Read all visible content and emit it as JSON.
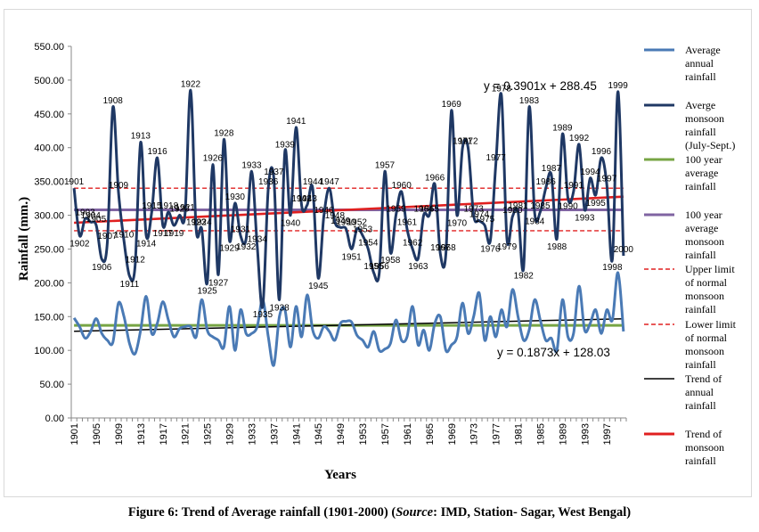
{
  "caption": {
    "main": "Figure 6: Trend of Average rainfall (1901-2000)  (",
    "source_label": "Source",
    "source_rest": ": IMD, Station- Sagar, West Bengal)"
  },
  "chart_data": {
    "type": "line",
    "xlabel": "Years",
    "ylabel": "Rainfall (mm.)",
    "ylim": [
      0,
      550
    ],
    "yticks": [
      "0.00",
      "50.00",
      "100.00",
      "150.00",
      "200.00",
      "250.00",
      "300.00",
      "350.00",
      "400.00",
      "450.00",
      "500.00",
      "550.00"
    ],
    "xticks": [
      "1901",
      "1905",
      "1909",
      "1913",
      "1917",
      "1921",
      "1925",
      "1929",
      "1933",
      "1937",
      "1941",
      "1945",
      "1949",
      "1953",
      "1957",
      "1961",
      "1965",
      "1969",
      "1973",
      "1977",
      "1981",
      "1985",
      "1989",
      "1993",
      "1997"
    ],
    "x_start": 1901,
    "x_end": 2000,
    "grid": false,
    "legend_position": "right",
    "series": [
      {
        "name": "Average annual rainfall",
        "color": "#4a7ab5",
        "values": [
          148,
          135,
          118,
          128,
          147,
          125,
          115,
          112,
          170,
          150,
          110,
          95,
          130,
          180,
          125,
          140,
          172,
          145,
          120,
          132,
          135,
          135,
          120,
          175,
          130,
          120,
          115,
          105,
          165,
          100,
          160,
          125,
          125,
          135,
          175,
          120,
          78,
          150,
          160,
          105,
          165,
          120,
          182,
          130,
          118,
          135,
          128,
          115,
          140,
          143,
          142,
          122,
          115,
          105,
          128,
          100,
          102,
          110,
          145,
          115,
          120,
          165,
          108,
          130,
          100,
          140,
          150,
          100,
          108,
          120,
          170,
          125,
          150,
          185,
          115,
          150,
          120,
          160,
          135,
          190,
          150,
          115,
          130,
          175,
          145,
          115,
          118,
          100,
          175,
          120,
          125,
          195,
          130,
          140,
          160,
          125,
          160,
          145,
          215,
          128
        ]
      },
      {
        "name": "Averge monsoon rainfall (July-Sept.)",
        "color": "#1f3864",
        "values": [
          340,
          270,
          295,
          290,
          285,
          235,
          260,
          460,
          335,
          262,
          210,
          225,
          408,
          270,
          305,
          385,
          285,
          305,
          285,
          300,
          302,
          485,
          280,
          280,
          200,
          375,
          212,
          412,
          263,
          318,
          270,
          265,
          365,
          255,
          165,
          340,
          355,
          175,
          395,
          300,
          430,
          315,
          315,
          340,
          207,
          298,
          340,
          290,
          282,
          280,
          250,
          280,
          270,
          250,
          215,
          215,
          365,
          245,
          300,
          335,
          280,
          250,
          236,
          300,
          300,
          346,
          243,
          243,
          455,
          300,
          400,
          400,
          300,
          292,
          285,
          262,
          376,
          478,
          265,
          298,
          305,
          222,
          460,
          303,
          305,
          340,
          360,
          265,
          420,
          325,
          335,
          405,
          308,
          355,
          330,
          385,
          345,
          235,
          483,
          240
        ],
        "labels": [
          "1901",
          "1902",
          "1903",
          "1904",
          "1905",
          "1906",
          "1907",
          "1908",
          "1909",
          "1910",
          "1911",
          "1912",
          "1913",
          "1914",
          "1915",
          "1916",
          "1917",
          "1918",
          "1919",
          "1920",
          "1921",
          "1922",
          "1923",
          "1924",
          "1925",
          "1926",
          "1927",
          "1928",
          "1929",
          "1930",
          "1931",
          "1932",
          "1933",
          "1934",
          "1935",
          "1936",
          "1937",
          "1938",
          "1939",
          "1940",
          "1941",
          "1942",
          "1943",
          "1944",
          "1945",
          "1946",
          "1947",
          "1948",
          "1949",
          "1950",
          "1951",
          "1952",
          "1953",
          "1954",
          "1955",
          "1956",
          "1957",
          "1958",
          "1959",
          "1960",
          "1961",
          "1962",
          "1963",
          "1964",
          "1965",
          "1966",
          "1967",
          "1968",
          "1969",
          "1970",
          "1971",
          "1972",
          "1973",
          "1974",
          "1975",
          "1976",
          "1977",
          "1978",
          "1979",
          "1980",
          "1981",
          "1982",
          "1983",
          "1984",
          "1985",
          "1986",
          "1987",
          "1988",
          "1989",
          "1990",
          "1991",
          "1992",
          "1993",
          "1994",
          "1995",
          "1996",
          "1997",
          "1998",
          "1999",
          "2000"
        ]
      },
      {
        "name": "100 year average rainfall",
        "color": "#77a544",
        "constant": 137
      },
      {
        "name": "100 year average monsoon rainfall",
        "color": "#8064a2",
        "constant": 308
      },
      {
        "name": "Upper limit of normal monsoon rainfall",
        "color": "#e02020",
        "constant": 340,
        "dashed": true
      },
      {
        "name": "Lower limit of normal monsoon rainfall",
        "color": "#e02020",
        "constant": 277,
        "dashed": true
      },
      {
        "name": "Trend of annual rainfall",
        "color": "#000000",
        "trend": {
          "slope": 0.1873,
          "intercept": 128.03
        }
      },
      {
        "name": "Trend of monsoon rainfall",
        "color": "#e02020",
        "trend": {
          "slope": 0.3901,
          "intercept": 288.45
        }
      }
    ],
    "annotations": {
      "monsoon_trend_equation": "y = 0.3901x + 288.45",
      "annual_trend_equation": "y = 0.1873x + 128.03"
    }
  }
}
